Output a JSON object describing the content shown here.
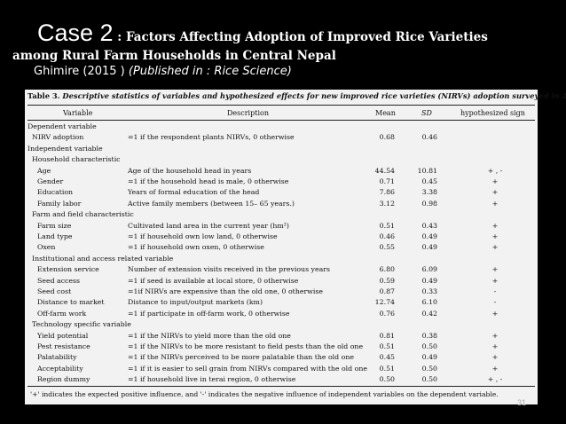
{
  "header": {
    "case_label": "Case 2",
    "case_sub": " : Factors Affecting Adoption of Improved Rice Varieties",
    "line2": "among Rural Farm Households in Central Nepal",
    "author": "Ghimire  (2015 ) ",
    "published": "(Published in : Rice Science)"
  },
  "table": {
    "caption_prefix": "Table 3.",
    "caption": " Descriptive statistics of variables and hypothesized effects for new improved rice varieties (NIRVs) adoption surveyed in 2013.",
    "columns": [
      "Variable",
      "Description",
      "Mean",
      "SD",
      "hypothesized sign"
    ],
    "rows": [
      {
        "v": "Dependent variable",
        "d": "",
        "m": "",
        "s": "",
        "h": "",
        "indent": 0
      },
      {
        "v": "NIRV adoption",
        "d": "=1 if the respondent plants NIRVs, 0 otherwise",
        "m": "0.68",
        "s": "0.46",
        "h": "",
        "indent": 1
      },
      {
        "v": "Independent variable",
        "d": "",
        "m": "",
        "s": "",
        "h": "",
        "indent": 0
      },
      {
        "v": "Household characteristic",
        "d": "",
        "m": "",
        "s": "",
        "h": "",
        "indent": 1
      },
      {
        "v": "Age",
        "d": "Age of the household head in years",
        "m": "44.54",
        "s": "10.81",
        "h": "+ , -",
        "indent": 2
      },
      {
        "v": "Gender",
        "d": "=1 if the household head is male, 0 otherwise",
        "m": "0.71",
        "s": "0.45",
        "h": "+",
        "indent": 2
      },
      {
        "v": "Education",
        "d": "Years of formal education of the head",
        "m": "7.86",
        "s": "3.38",
        "h": "+",
        "indent": 2
      },
      {
        "v": "Family labor",
        "d": "Active family members (between 15– 65 years.)",
        "m": "3.12",
        "s": "0.98",
        "h": "+",
        "indent": 2
      },
      {
        "v": "Farm and field characteristic",
        "d": "",
        "m": "",
        "s": "",
        "h": "",
        "indent": 1
      },
      {
        "v": "Farm size",
        "d": "Cultivated land area in the current year (hm²)",
        "m": "0.51",
        "s": "0.43",
        "h": "+",
        "indent": 2
      },
      {
        "v": "Land type",
        "d": "=1 if household own low land, 0 otherwise",
        "m": "0.46",
        "s": "0.49",
        "h": "+",
        "indent": 2
      },
      {
        "v": "Oxen",
        "d": "=1 if household own oxen, 0 otherwise",
        "m": "0.55",
        "s": "0.49",
        "h": "+",
        "indent": 2
      },
      {
        "v": "Institutional and access related variable",
        "d": "",
        "m": "",
        "s": "",
        "h": "",
        "indent": 1
      },
      {
        "v": "Extension service",
        "d": "Number of extension visits received in the previous years",
        "m": "6.80",
        "s": "6.09",
        "h": "+",
        "indent": 2
      },
      {
        "v": "Seed access",
        "d": "=1 if seed is available at local store, 0 otherwise",
        "m": "0.59",
        "s": "0.49",
        "h": "+",
        "indent": 2
      },
      {
        "v": "Seed cost",
        "d": "=1if NIRVs are expensive than the old one, 0 otherwise",
        "m": "0.87",
        "s": "0.33",
        "h": "-",
        "indent": 2
      },
      {
        "v": "Distance to market",
        "d": "Distance to input/output markets (km)",
        "m": "12.74",
        "s": "6.10",
        "h": "-",
        "indent": 2
      },
      {
        "v": "Off-farm work",
        "d": "=1 if participate in off-farm work, 0 otherwise",
        "m": "0.76",
        "s": "0.42",
        "h": "+",
        "indent": 2
      },
      {
        "v": "Technology specific variable",
        "d": "",
        "m": "",
        "s": "",
        "h": "",
        "indent": 1
      },
      {
        "v": "Yield potential",
        "d": "=1 if the NIRVs to yield more than the old one",
        "m": "0.81",
        "s": "0.38",
        "h": "+",
        "indent": 2
      },
      {
        "v": "Pest resistance",
        "d": "=1 if the NIRVs to be more resistant to field pests than the old one",
        "m": "0.51",
        "s": "0.50",
        "h": "+",
        "indent": 2
      },
      {
        "v": "Palatability",
        "d": "=1 if the NIRVs perceived to be more palatable than the old one",
        "m": "0.45",
        "s": "0.49",
        "h": "+",
        "indent": 2
      },
      {
        "v": "Acceptability",
        "d": "=1 if it is easier to sell grain from NIRVs compared with the old one",
        "m": "0.51",
        "s": "0.50",
        "h": "+",
        "indent": 2
      },
      {
        "v": "Region dummy",
        "d": "=1 if household live in terai region, 0 otherwise",
        "m": "0.50",
        "s": "0.50",
        "h": "+ , -",
        "indent": 2
      }
    ],
    "footnote": "'+' indicates the expected positive influence, and '-' indicates the negative influence of independent variables on the dependent variable."
  },
  "page_number": "31"
}
